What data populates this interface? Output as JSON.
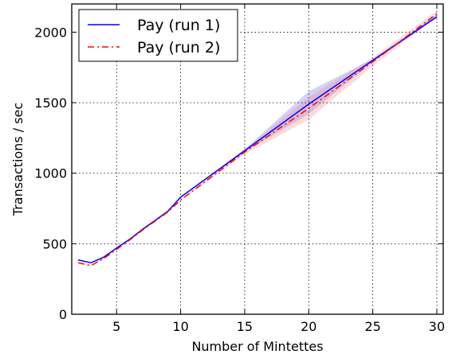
{
  "chart_data": {
    "type": "line",
    "title": "",
    "xlabel": "Number of Mintettes",
    "ylabel": "Transactions / sec",
    "xlim": [
      1.5,
      30.5
    ],
    "ylim": [
      0,
      2200
    ],
    "xticks": [
      5,
      10,
      15,
      20,
      25,
      30
    ],
    "yticks": [
      0,
      500,
      1000,
      1500,
      2000
    ],
    "grid": true,
    "grid_style": "dotted",
    "legend_position": "top-left",
    "series": [
      {
        "name": "Pay (run 1)",
        "color": "#0000ff",
        "line_style": "solid",
        "band_color": "#6666ee",
        "x": [
          2,
          3,
          4,
          5,
          6,
          7,
          8,
          9,
          10,
          15,
          20,
          25,
          30
        ],
        "y": [
          385,
          365,
          405,
          470,
          530,
          600,
          665,
          730,
          830,
          1160,
          1490,
          1800,
          2110
        ],
        "lower": [
          385,
          365,
          405,
          470,
          530,
          600,
          665,
          730,
          830,
          1150,
          1420,
          1790,
          2100
        ],
        "upper": [
          385,
          365,
          405,
          470,
          530,
          600,
          665,
          730,
          830,
          1170,
          1580,
          1810,
          2120
        ]
      },
      {
        "name": "Pay (run 2)",
        "color": "#ff0000",
        "line_style": "dashdot",
        "band_color": "#ee8888",
        "x": [
          2,
          3,
          4,
          5,
          6,
          7,
          8,
          9,
          10,
          15,
          20,
          25,
          30
        ],
        "y": [
          365,
          345,
          395,
          460,
          525,
          595,
          660,
          725,
          810,
          1150,
          1460,
          1790,
          2130
        ],
        "lower": [
          360,
          340,
          390,
          455,
          520,
          590,
          655,
          720,
          805,
          1135,
          1380,
          1760,
          2110
        ],
        "upper": [
          370,
          350,
          400,
          465,
          530,
          600,
          665,
          730,
          815,
          1165,
          1540,
          1820,
          2150
        ]
      }
    ]
  }
}
